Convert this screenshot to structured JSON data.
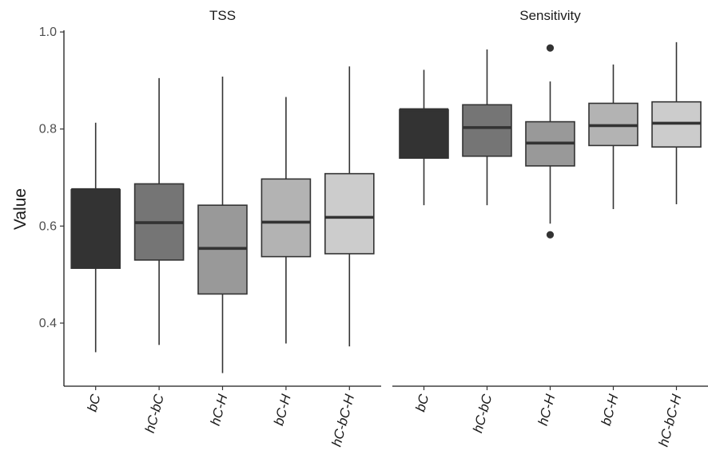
{
  "chart_data": {
    "type": "box",
    "ylabel": "Value",
    "xlabel": "",
    "ylim": [
      0.27,
      1.01
    ],
    "yticks": [
      0.4,
      0.6,
      0.8,
      1.0
    ],
    "ytick_labels": [
      "0.4",
      "0.6",
      "0.8",
      "1.0"
    ],
    "categories": [
      "bC",
      "hC-bC",
      "hC-H",
      "bC-H",
      "hC-bC-H"
    ],
    "fills": [
      "#333333",
      "#757575",
      "#999999",
      "#b3b3b3",
      "#cccccc"
    ],
    "panels": [
      {
        "title": "TSS",
        "boxes": [
          {
            "category": "bC",
            "whisker_low": 0.34,
            "q1": 0.513,
            "median": 0.675,
            "q3": 0.675,
            "whisker_high": 0.813,
            "outliers": []
          },
          {
            "category": "hC-bC",
            "whisker_low": 0.355,
            "q1": 0.53,
            "median": 0.607,
            "q3": 0.687,
            "whisker_high": 0.905,
            "outliers": []
          },
          {
            "category": "hC-H",
            "whisker_low": 0.297,
            "q1": 0.46,
            "median": 0.554,
            "q3": 0.643,
            "whisker_high": 0.908,
            "outliers": []
          },
          {
            "category": "bC-H",
            "whisker_low": 0.358,
            "q1": 0.537,
            "median": 0.608,
            "q3": 0.697,
            "whisker_high": 0.866,
            "outliers": []
          },
          {
            "category": "hC-bC-H",
            "whisker_low": 0.352,
            "q1": 0.543,
            "median": 0.618,
            "q3": 0.708,
            "whisker_high": 0.929,
            "outliers": []
          }
        ]
      },
      {
        "title": "Sensitivity",
        "boxes": [
          {
            "category": "bC",
            "whisker_low": 0.643,
            "q1": 0.74,
            "median": 0.84,
            "q3": 0.84,
            "whisker_high": 0.922,
            "outliers": []
          },
          {
            "category": "hC-bC",
            "whisker_low": 0.643,
            "q1": 0.744,
            "median": 0.803,
            "q3": 0.85,
            "whisker_high": 0.964,
            "outliers": []
          },
          {
            "category": "hC-H",
            "whisker_low": 0.605,
            "q1": 0.724,
            "median": 0.771,
            "q3": 0.815,
            "whisker_high": 0.898,
            "outliers": [
              0.967,
              0.582
            ]
          },
          {
            "category": "bC-H",
            "whisker_low": 0.635,
            "q1": 0.766,
            "median": 0.807,
            "q3": 0.853,
            "whisker_high": 0.933,
            "outliers": []
          },
          {
            "category": "hC-bC-H",
            "whisker_low": 0.645,
            "q1": 0.763,
            "median": 0.812,
            "q3": 0.856,
            "whisker_high": 0.979,
            "outliers": []
          }
        ]
      }
    ]
  }
}
